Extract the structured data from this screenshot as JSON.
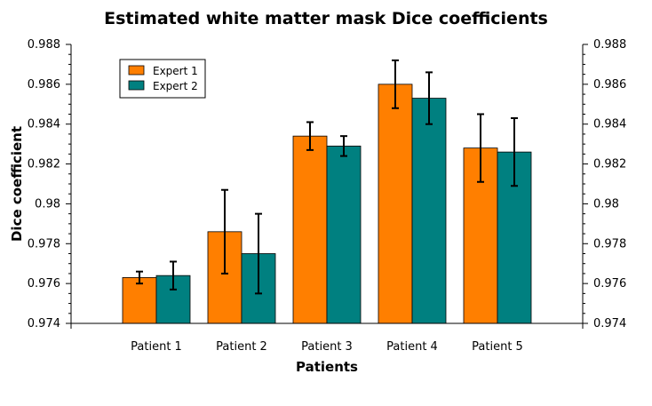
{
  "chart_data": {
    "type": "bar",
    "title": "Estimated white matter mask Dice coefficients",
    "xlabel": "Patients",
    "ylabel": "Dice coefficient",
    "categories": [
      "Patient 1",
      "Patient 2",
      "Patient 3",
      "Patient 4",
      "Patient 5"
    ],
    "series": [
      {
        "name": "Expert 1",
        "color": "#ff7f00",
        "values": [
          0.9763,
          0.9786,
          0.9834,
          0.986,
          0.9828
        ],
        "err_low": [
          0.976,
          0.9765,
          0.9827,
          0.9848,
          0.9811
        ],
        "err_high": [
          0.9766,
          0.9807,
          0.9841,
          0.9872,
          0.9845
        ]
      },
      {
        "name": "Expert 2",
        "color": "#008080",
        "values": [
          0.9764,
          0.9775,
          0.9829,
          0.9853,
          0.9826
        ],
        "err_low": [
          0.9757,
          0.9755,
          0.9824,
          0.984,
          0.9809
        ],
        "err_high": [
          0.9771,
          0.9795,
          0.9834,
          0.9866,
          0.9843
        ]
      }
    ],
    "ylim": [
      0.974,
      0.988
    ],
    "yticks": [
      0.974,
      0.976,
      0.978,
      0.98,
      0.982,
      0.984,
      0.986,
      0.988
    ],
    "ytick_labels": [
      "0.974",
      "0.976",
      "0.978",
      "0.98",
      "0.982",
      "0.984",
      "0.986",
      "0.988"
    ],
    "legend_position": "top-left",
    "grid": false
  }
}
